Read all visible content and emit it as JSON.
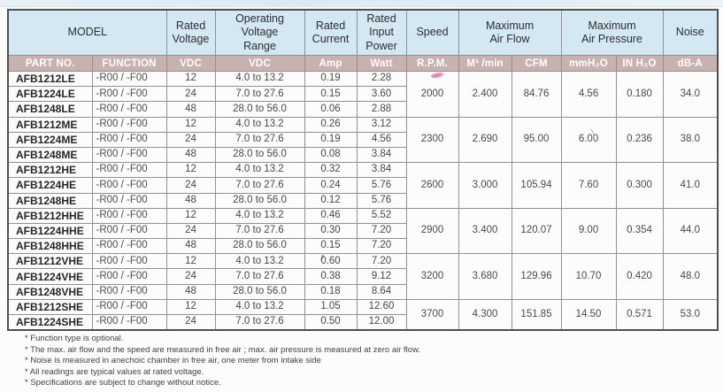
{
  "table": {
    "header": {
      "model": "MODEL",
      "rated_voltage": "Rated\nVoltage",
      "operating_range": "Operating\nVoltage\nRange",
      "rated_current": "Rated\nCurrent",
      "rated_input_power": "Rated\nInput\nPower",
      "speed": "Speed",
      "max_air_flow": "Maximum\nAir Flow",
      "max_air_pressure": "Maximum\nAir Pressure",
      "noise": "Noise"
    },
    "units": {
      "part_no": "PART NO.",
      "function": "FUNCTION",
      "rated_voltage": "VDC",
      "operating_range": "VDC",
      "current": "Amp",
      "power": "Watt",
      "speed": "R.P.M.",
      "air_flow_metric": "M³ /min",
      "air_flow_cfm": "CFM",
      "pressure_mm": "mmH₂O",
      "pressure_in": "IN H₂O",
      "noise": "dB-A"
    },
    "rows": [
      {
        "part_no": "AFB1212LE",
        "function": "-R00 / -F00",
        "vdc": "12",
        "range": "4.0 to 13.2",
        "amp": "0.19",
        "watt": "2.28"
      },
      {
        "part_no": "AFB1224LE",
        "function": "-R00 / -F00",
        "vdc": "24",
        "range": "7.0 to 27.6",
        "amp": "0.15",
        "watt": "3.60"
      },
      {
        "part_no": "AFB1248LE",
        "function": "-R00 / -F00",
        "vdc": "48",
        "range": "28.0 to 56.0",
        "amp": "0.06",
        "watt": "2.88"
      },
      {
        "part_no": "AFB1212ME",
        "function": "-R00 / -F00",
        "vdc": "12",
        "range": "4.0 to 13.2",
        "amp": "0.26",
        "watt": "3.12"
      },
      {
        "part_no": "AFB1224ME",
        "function": "-R00 / -F00",
        "vdc": "24",
        "range": "7.0 to 27.6",
        "amp": "0.19",
        "watt": "4.56"
      },
      {
        "part_no": "AFB1248ME",
        "function": "-R00 / -F00",
        "vdc": "48",
        "range": "28.0 to 56.0",
        "amp": "0.08",
        "watt": "3.84"
      },
      {
        "part_no": "AFB1212HE",
        "function": "-R00 / -F00",
        "vdc": "12",
        "range": "4.0 to 13.2",
        "amp": "0.32",
        "watt": "3.84"
      },
      {
        "part_no": "AFB1224HE",
        "function": "-R00 / -F00",
        "vdc": "24",
        "range": "7.0 to 27.6",
        "amp": "0.24",
        "watt": "5.76"
      },
      {
        "part_no": "AFB1248HE",
        "function": "-R00 / -F00",
        "vdc": "48",
        "range": "28.0 to 56.0",
        "amp": "0.12",
        "watt": "5.76"
      },
      {
        "part_no": "AFB1212HHE",
        "function": "-R00 / -F00",
        "vdc": "12",
        "range": "4.0 to 13.2",
        "amp": "0.46",
        "watt": "5.52"
      },
      {
        "part_no": "AFB1224HHE",
        "function": "-R00 / -F00",
        "vdc": "24",
        "range": "7.0 to 27.6",
        "amp": "0.30",
        "watt": "7.20"
      },
      {
        "part_no": "AFB1248HHE",
        "function": "-R00 / -F00",
        "vdc": "48",
        "range": "28.0 to 56.0",
        "amp": "0.15",
        "watt": "7.20"
      },
      {
        "part_no": "AFB1212VHE",
        "function": "-R00 / -F00",
        "vdc": "12",
        "range": "4.0 to 13.2",
        "amp": "0.60",
        "watt": "7.20"
      },
      {
        "part_no": "AFB1224VHE",
        "function": "-R00 / -F00",
        "vdc": "24",
        "range": "7.0 to 27.6",
        "amp": "0.38",
        "watt": "9.12"
      },
      {
        "part_no": "AFB1248VHE",
        "function": "-R00 / -F00",
        "vdc": "48",
        "range": "28.0 to 56.0",
        "amp": "0.18",
        "watt": "8.64"
      },
      {
        "part_no": "AFB1212SHE",
        "function": "-R00 / -F00",
        "vdc": "12",
        "range": "4.0 to 13.2",
        "amp": "1.05",
        "watt": "12.60"
      },
      {
        "part_no": "AFB1224SHE",
        "function": "-R00 / -F00",
        "vdc": "24",
        "range": "7.0 to 27.6",
        "amp": "0.50",
        "watt": "12.00"
      }
    ],
    "groups": [
      {
        "span": 3,
        "rpm": "2000",
        "m3min": "2.400",
        "cfm": "84.76",
        "mmh2o": "4.56",
        "inh2o": "0.180",
        "dba": "34.0"
      },
      {
        "span": 3,
        "rpm": "2300",
        "m3min": "2.690",
        "cfm": "95.00",
        "mmh2o": "6.00",
        "inh2o": "0.236",
        "dba": "38.0"
      },
      {
        "span": 3,
        "rpm": "2600",
        "m3min": "3.000",
        "cfm": "105.94",
        "mmh2o": "7.60",
        "inh2o": "0.300",
        "dba": "41.0"
      },
      {
        "span": 3,
        "rpm": "2900",
        "m3min": "3.400",
        "cfm": "120.07",
        "mmh2o": "9.00",
        "inh2o": "0.354",
        "dba": "44.0"
      },
      {
        "span": 3,
        "rpm": "3200",
        "m3min": "3.680",
        "cfm": "129.96",
        "mmh2o": "10.70",
        "inh2o": "0.420",
        "dba": "48.0"
      },
      {
        "span": 2,
        "rpm": "3700",
        "m3min": "4.300",
        "cfm": "151.85",
        "mmh2o": "14.50",
        "inh2o": "0.571",
        "dba": "53.0"
      }
    ]
  },
  "footnotes": [
    "* Function type is optional.",
    "* The max. air flow and the speed are measured in free air ; max. air pressure is measured at zero air flow.",
    "* Noise is measured in anechoic chamber in free air, one meter from intake side",
    "* All readings are typical values at rated voltage.",
    "* Specifications are subject to change without notice."
  ],
  "colors": {
    "header_bg": "#d3e8f3",
    "subheader_bg": "#c8b2b0",
    "subheader_text": "#ffffff",
    "grid_line": "#919191",
    "pen_mark_pink": "#e2649f"
  }
}
